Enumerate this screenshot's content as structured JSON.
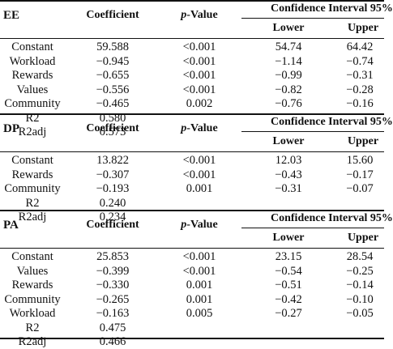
{
  "sections": [
    {
      "label": "EE",
      "headers": {
        "coefficient": "Coefficient",
        "p_italic": "p",
        "p_rest": "-Value",
        "ci": "Confidence Interval 95%",
        "lower": "Lower",
        "upper": "Upper"
      },
      "rows": [
        {
          "name": "Constant",
          "coef": "59.588",
          "p": "<0.001",
          "lower": "54.74",
          "upper": "64.42"
        },
        {
          "name": "Workload",
          "coef": "−0.945",
          "p": "<0.001",
          "lower": "−1.14",
          "upper": "−0.74"
        },
        {
          "name": "Rewards",
          "coef": "−0.655",
          "p": "<0.001",
          "lower": "−0.99",
          "upper": "−0.31"
        },
        {
          "name": "Values",
          "coef": "−0.556",
          "p": "<0.001",
          "lower": "−0.82",
          "upper": "−0.28"
        },
        {
          "name": "Community",
          "coef": "−0.465",
          "p": "0.002",
          "lower": "−0.76",
          "upper": "−0.16"
        },
        {
          "name": "R2",
          "coef": "0.580",
          "p": "",
          "lower": "",
          "upper": ""
        },
        {
          "name": "R2adj",
          "coef": "0.573",
          "p": "",
          "lower": "",
          "upper": ""
        }
      ]
    },
    {
      "label": "DP",
      "headers": {
        "coefficient": "Coefficient",
        "p_italic": "p",
        "p_rest": "-Value",
        "ci": "Confidence Interval 95%",
        "lower": "Lower",
        "upper": "Upper"
      },
      "rows": [
        {
          "name": "Constant",
          "coef": "13.822",
          "p": "<0.001",
          "lower": "12.03",
          "upper": "15.60"
        },
        {
          "name": "Rewards",
          "coef": "−0.307",
          "p": "<0.001",
          "lower": "−0.43",
          "upper": "−0.17"
        },
        {
          "name": "Community",
          "coef": "−0.193",
          "p": "0.001",
          "lower": "−0.31",
          "upper": "−0.07"
        },
        {
          "name": "R2",
          "coef": "0.240",
          "p": "",
          "lower": "",
          "upper": ""
        },
        {
          "name": "R2adj",
          "coef": "0.234",
          "p": "",
          "lower": "",
          "upper": ""
        }
      ]
    },
    {
      "label": "PA",
      "headers": {
        "coefficient": "Coefficient",
        "p_italic": "p",
        "p_rest": "-Value",
        "ci": "Confidence Interval 95%",
        "lower": "Lower",
        "upper": "Upper"
      },
      "rows": [
        {
          "name": "Constant",
          "coef": "25.853",
          "p": "<0.001",
          "lower": "23.15",
          "upper": "28.54"
        },
        {
          "name": "Values",
          "coef": "−0.399",
          "p": "<0.001",
          "lower": "−0.54",
          "upper": "−0.25"
        },
        {
          "name": "Rewards",
          "coef": "−0.330",
          "p": "0.001",
          "lower": "−0.51",
          "upper": "−0.14"
        },
        {
          "name": "Community",
          "coef": "−0.265",
          "p": "0.001",
          "lower": "−0.42",
          "upper": "−0.10"
        },
        {
          "name": "Workload",
          "coef": "−0.163",
          "p": "0.005",
          "lower": "−0.27",
          "upper": "−0.05"
        },
        {
          "name": "R2",
          "coef": "0.475",
          "p": "",
          "lower": "",
          "upper": ""
        },
        {
          "name": "R2adj",
          "coef": "0.466",
          "p": "",
          "lower": "",
          "upper": ""
        }
      ]
    }
  ]
}
